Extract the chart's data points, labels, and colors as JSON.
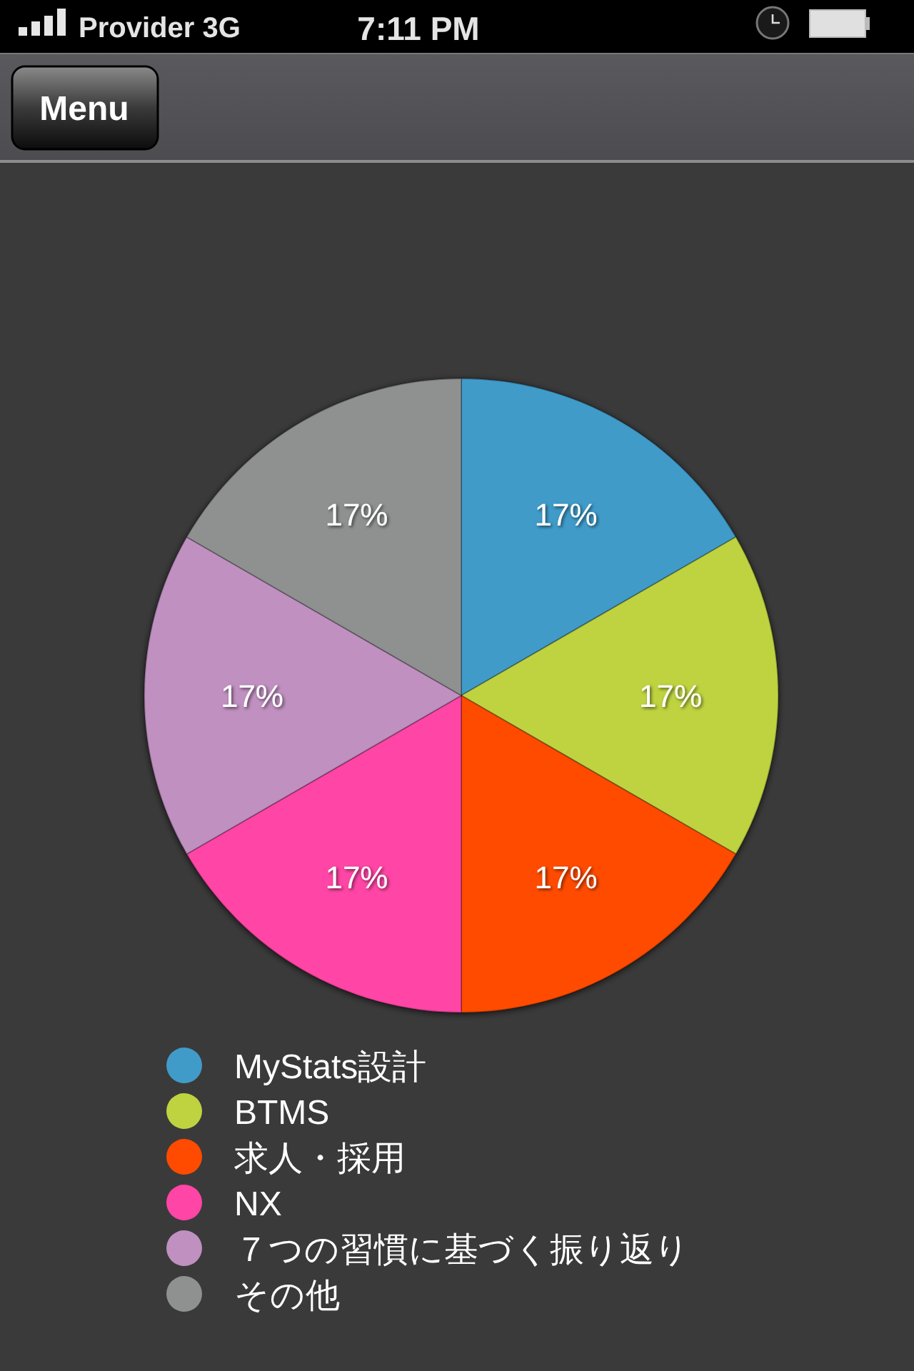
{
  "chart_data": {
    "type": "pie",
    "categories": [
      "MyStats設計",
      "BTMS",
      "求人・採用",
      "NX",
      "７つの習慣に基づく振り返り",
      "その他"
    ],
    "values": [
      17,
      17,
      17,
      17,
      17,
      17
    ],
    "value_labels": [
      "17%",
      "17%",
      "17%",
      "17%",
      "17%",
      "17%"
    ],
    "colors": [
      "#419bc9",
      "#bfd341",
      "#ff4b00",
      "#ff45a5",
      "#c090c0",
      "#8e9190"
    ],
    "legend": "bottom",
    "annotations": [
      "Provider 3G",
      "7:11 PM",
      "Menu"
    ]
  }
}
